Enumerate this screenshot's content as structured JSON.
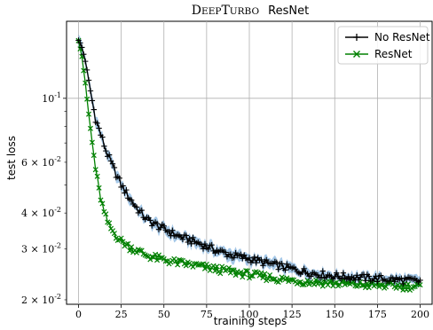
{
  "chart_data": {
    "type": "line",
    "title_prefix": "DeepTurbo",
    "title_suffix": "ResNet",
    "xlabel": "training steps",
    "ylabel": "test loss",
    "xlim": [
      -7,
      207
    ],
    "ylim": [
      0.0193,
      0.185
    ],
    "yscale": "log",
    "grid": true,
    "legend_position": "top-right",
    "xticks": [
      0,
      25,
      50,
      75,
      100,
      125,
      150,
      175,
      200
    ],
    "yticks_major": [
      {
        "value": 0.1,
        "label": "10^-1"
      }
    ],
    "yticks_minor": [
      {
        "value": 0.06,
        "label": "6 × 10^-2"
      },
      {
        "value": 0.04,
        "label": "4 × 10^-2"
      },
      {
        "value": 0.03,
        "label": "3 × 10^-2"
      },
      {
        "value": 0.02,
        "label": "2 × 10^-2"
      }
    ],
    "series": [
      {
        "name": "No ResNet",
        "color": "#000000",
        "marker": "plus",
        "band_color": "#5b9bd5",
        "anchors": [
          [
            0,
            0.16
          ],
          [
            2,
            0.15
          ],
          [
            4,
            0.135
          ],
          [
            6,
            0.115
          ],
          [
            8,
            0.098
          ],
          [
            10,
            0.085
          ],
          [
            13,
            0.075
          ],
          [
            16,
            0.066
          ],
          [
            20,
            0.058
          ],
          [
            25,
            0.05
          ],
          [
            30,
            0.045
          ],
          [
            35,
            0.041
          ],
          [
            40,
            0.038
          ],
          [
            45,
            0.0365
          ],
          [
            50,
            0.0352
          ],
          [
            55,
            0.034
          ],
          [
            60,
            0.033
          ],
          [
            70,
            0.0315
          ],
          [
            80,
            0.0298
          ],
          [
            90,
            0.0285
          ],
          [
            100,
            0.0278
          ],
          [
            110,
            0.0268
          ],
          [
            120,
            0.026
          ],
          [
            130,
            0.0252
          ],
          [
            140,
            0.0246
          ],
          [
            150,
            0.0242
          ],
          [
            160,
            0.024
          ],
          [
            170,
            0.0238
          ],
          [
            180,
            0.0236
          ],
          [
            190,
            0.0234
          ],
          [
            200,
            0.0232
          ]
        ]
      },
      {
        "name": "ResNet",
        "color": "#008000",
        "marker": "x",
        "anchors": [
          [
            0,
            0.16
          ],
          [
            2,
            0.14
          ],
          [
            4,
            0.112
          ],
          [
            6,
            0.088
          ],
          [
            8,
            0.07
          ],
          [
            10,
            0.057
          ],
          [
            12,
            0.048
          ],
          [
            15,
            0.04
          ],
          [
            18,
            0.036
          ],
          [
            21,
            0.034
          ],
          [
            25,
            0.032
          ],
          [
            30,
            0.0305
          ],
          [
            35,
            0.0295
          ],
          [
            40,
            0.0285
          ],
          [
            50,
            0.0275
          ],
          [
            60,
            0.0268
          ],
          [
            70,
            0.0262
          ],
          [
            80,
            0.0256
          ],
          [
            90,
            0.025
          ],
          [
            100,
            0.0245
          ],
          [
            110,
            0.024
          ],
          [
            120,
            0.0235
          ],
          [
            130,
            0.0232
          ],
          [
            140,
            0.023
          ],
          [
            150,
            0.0228
          ],
          [
            160,
            0.0226
          ],
          [
            170,
            0.0225
          ],
          [
            180,
            0.0224
          ],
          [
            190,
            0.0223
          ],
          [
            200,
            0.0222
          ]
        ]
      }
    ]
  }
}
